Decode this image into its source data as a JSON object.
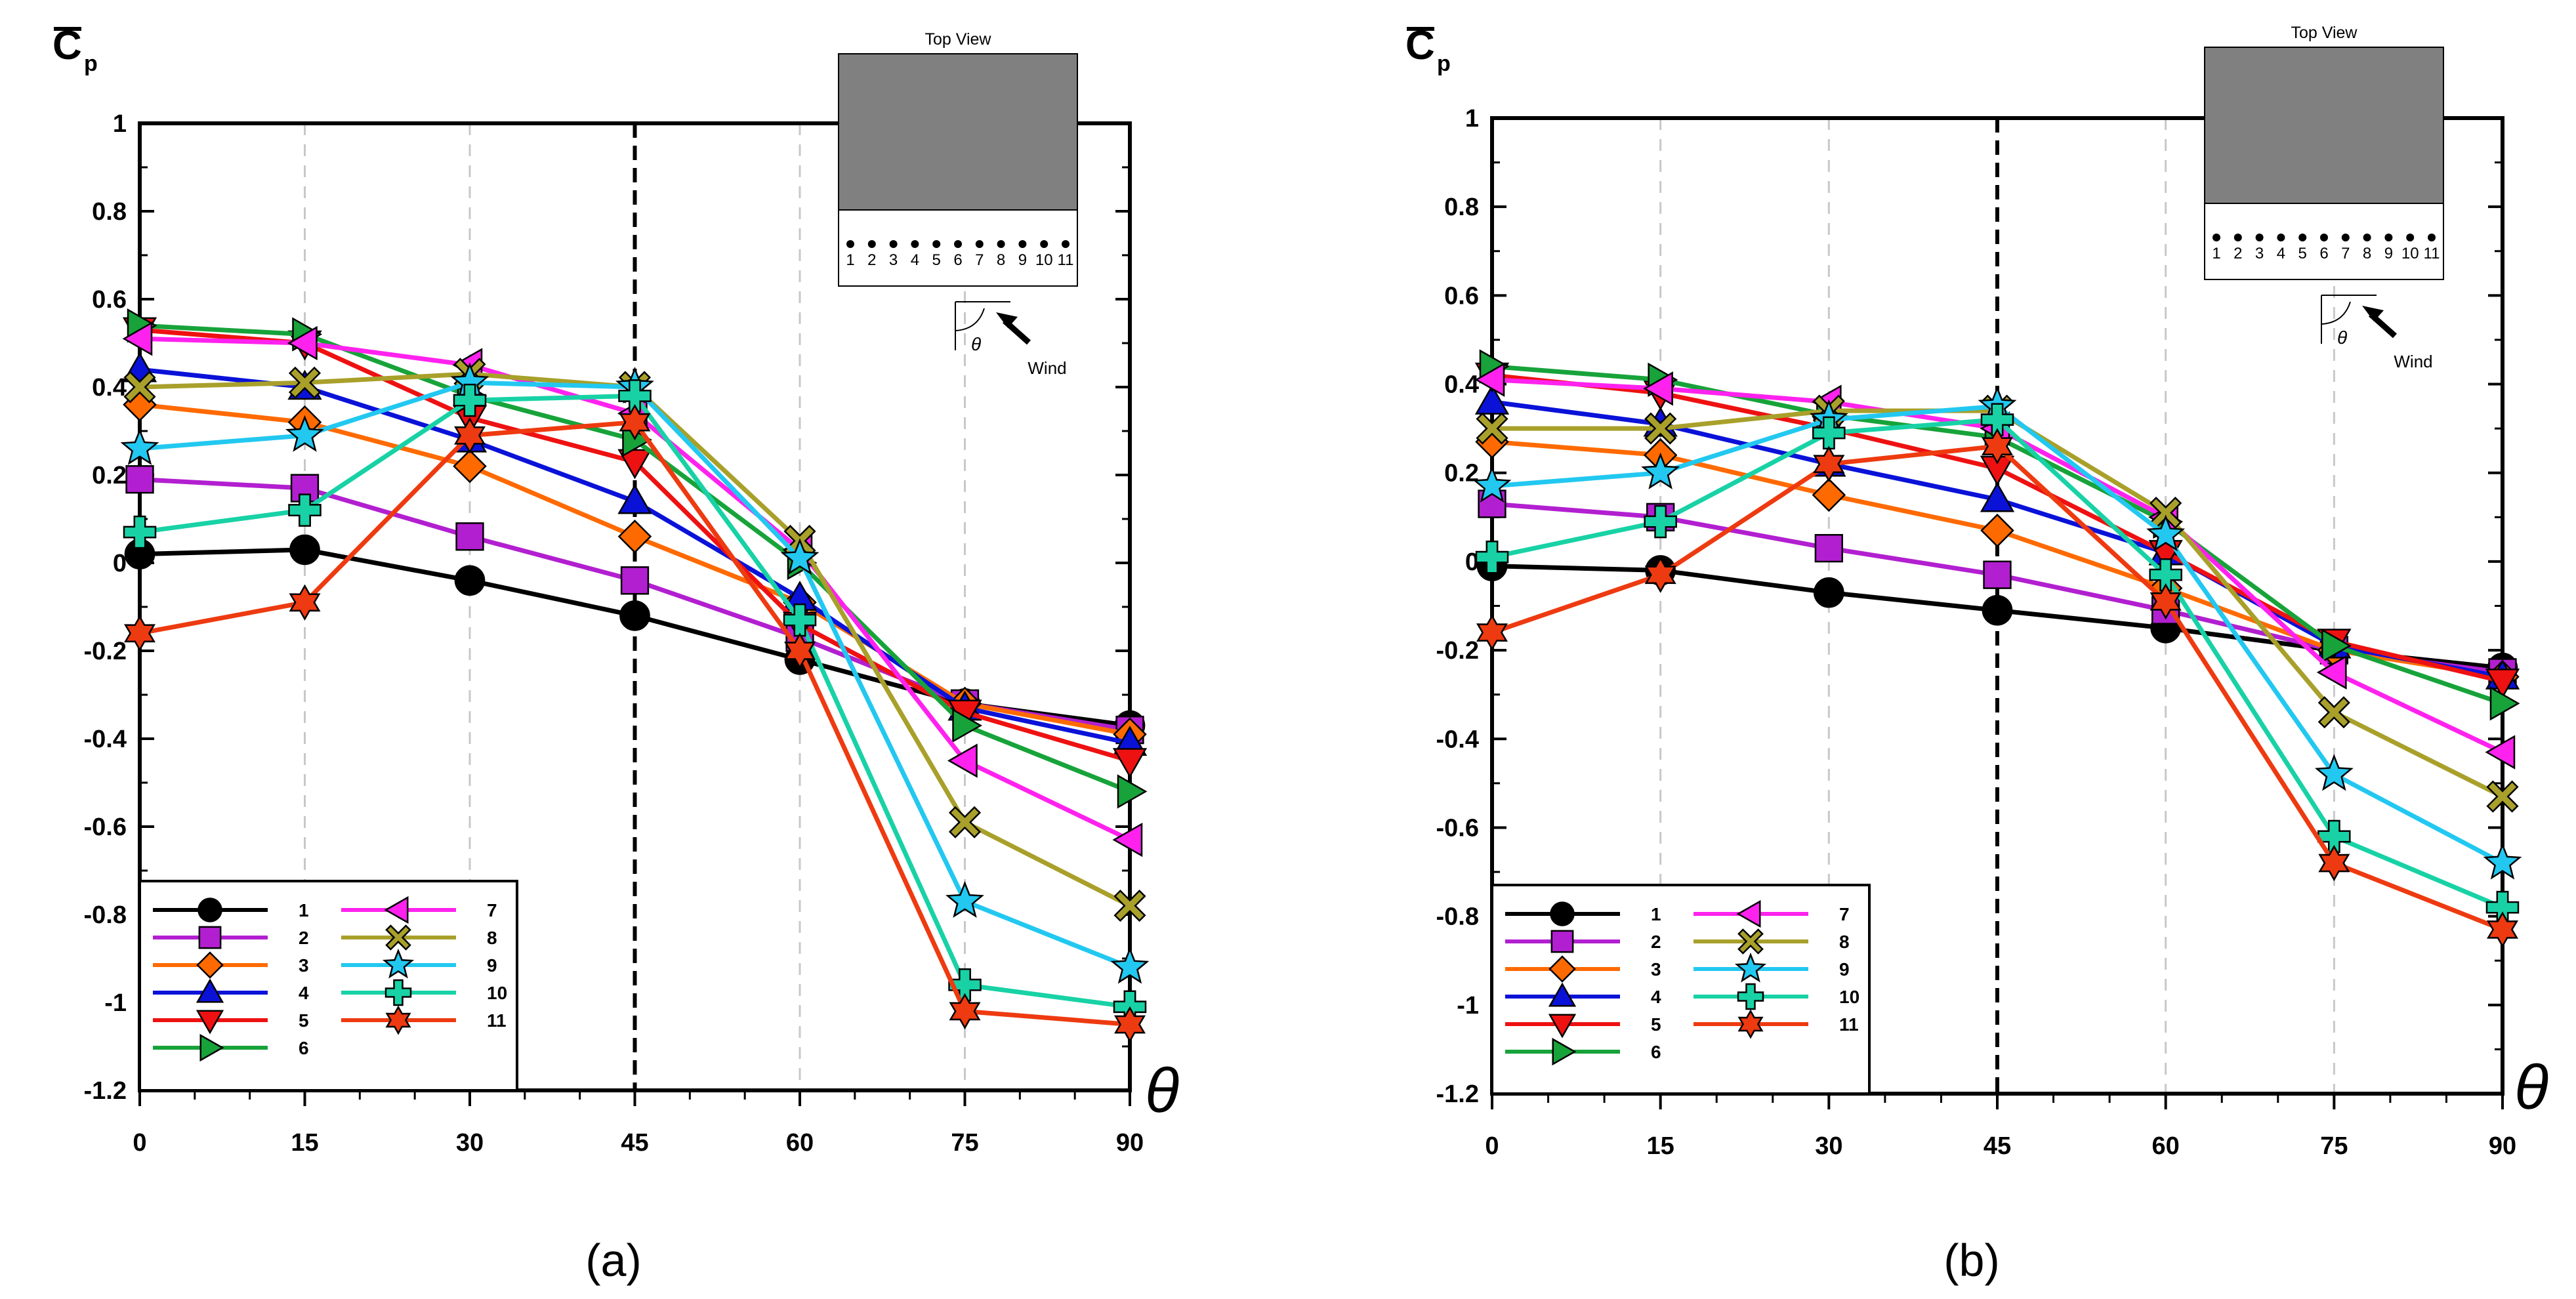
{
  "panels": [
    {
      "letter": "(a)",
      "ylabel": "C",
      "ylabel_sub": "p",
      "xlabel": "θ",
      "inset": {
        "title": "Top View",
        "taps": [
          "1",
          "2",
          "3",
          "4",
          "5",
          "6",
          "7",
          "8",
          "9",
          "10",
          "11"
        ],
        "angle_label": "θ",
        "wind_label": "Wind"
      }
    },
    {
      "letter": "(b)",
      "ylabel": "C",
      "ylabel_sub": "p",
      "xlabel": "θ",
      "inset": {
        "title": "Top View",
        "taps": [
          "1",
          "2",
          "3",
          "4",
          "5",
          "6",
          "7",
          "8",
          "9",
          "10",
          "11"
        ],
        "angle_label": "θ",
        "wind_label": "Wind"
      }
    }
  ],
  "chart_data": [
    {
      "type": "line",
      "title": "(a)",
      "xlabel": "θ",
      "ylabel": "C̄p",
      "x": [
        0,
        15,
        30,
        45,
        60,
        75,
        90
      ],
      "xlim": [
        0,
        90
      ],
      "ylim": [
        -1.2,
        1
      ],
      "yticks": [
        -1.2,
        -1,
        -0.8,
        -0.6,
        -0.4,
        -0.2,
        0,
        0.2,
        0.4,
        0.6,
        0.8,
        1
      ],
      "ytick_labels": [
        "-1.2",
        "-1",
        "-0.8",
        "-0.6",
        "-0.4",
        "-0.2",
        "0",
        "0.2",
        "0.4",
        "0.6",
        "0.8",
        "1"
      ],
      "xticks": [
        "0",
        "15",
        "30",
        "45",
        "60",
        "75",
        "90"
      ],
      "reference_line_x": 45,
      "legend_placement": "bottom-left",
      "series": [
        {
          "name": "1",
          "color": "#000000",
          "marker": "circle",
          "values": [
            0.02,
            0.03,
            -0.04,
            -0.12,
            -0.22,
            -0.32,
            -0.37
          ]
        },
        {
          "name": "2",
          "color": "#b21fd0",
          "marker": "square",
          "values": [
            0.19,
            0.17,
            0.06,
            -0.04,
            -0.17,
            -0.32,
            -0.38
          ]
        },
        {
          "name": "3",
          "color": "#ff6a00",
          "marker": "diamond",
          "values": [
            0.36,
            0.32,
            0.22,
            0.06,
            -0.09,
            -0.32,
            -0.39
          ]
        },
        {
          "name": "4",
          "color": "#0a12d8",
          "marker": "triangle-up",
          "values": [
            0.44,
            0.4,
            0.28,
            0.14,
            -0.08,
            -0.33,
            -0.41
          ]
        },
        {
          "name": "5",
          "color": "#ee1111",
          "marker": "triangle-down",
          "values": [
            0.53,
            0.5,
            0.33,
            0.23,
            -0.14,
            -0.34,
            -0.45
          ]
        },
        {
          "name": "6",
          "color": "#17a33a",
          "marker": "triangle-right",
          "values": [
            0.54,
            0.52,
            0.38,
            0.28,
            0.0,
            -0.37,
            -0.52
          ]
        },
        {
          "name": "7",
          "color": "#ff22ee",
          "marker": "triangle-left",
          "values": [
            0.51,
            0.5,
            0.45,
            0.34,
            0.03,
            -0.45,
            -0.63
          ]
        },
        {
          "name": "8",
          "color": "#a8a02a",
          "marker": "x",
          "values": [
            0.4,
            0.41,
            0.43,
            0.4,
            0.05,
            -0.59,
            -0.78
          ]
        },
        {
          "name": "9",
          "color": "#22c8f0",
          "marker": "star",
          "values": [
            0.26,
            0.29,
            0.41,
            0.4,
            0.01,
            -0.77,
            -0.92
          ]
        },
        {
          "name": "10",
          "color": "#18d2a6",
          "marker": "plus",
          "values": [
            0.07,
            0.12,
            0.37,
            0.38,
            -0.13,
            -0.96,
            -1.01
          ]
        },
        {
          "name": "11",
          "color": "#ee3a10",
          "marker": "hexagram",
          "values": [
            -0.16,
            -0.09,
            0.29,
            0.32,
            -0.2,
            -1.02,
            -1.05
          ]
        }
      ]
    },
    {
      "type": "line",
      "title": "(b)",
      "xlabel": "θ",
      "ylabel": "C̄p",
      "x": [
        0,
        15,
        30,
        45,
        60,
        75,
        90
      ],
      "xlim": [
        0,
        90
      ],
      "ylim": [
        -1.2,
        1
      ],
      "yticks": [
        -1.2,
        -1,
        -0.8,
        -0.6,
        -0.4,
        -0.2,
        0,
        0.2,
        0.4,
        0.6,
        0.8,
        1
      ],
      "ytick_labels": [
        "-1.2",
        "-1",
        "-0.8",
        "-0.6",
        "-0.4",
        "-0.2",
        "0",
        "0.2",
        "0.4",
        "0.6",
        "0.8",
        "1"
      ],
      "xticks": [
        "0",
        "15",
        "30",
        "45",
        "60",
        "75",
        "90"
      ],
      "reference_line_x": 45,
      "legend_placement": "bottom-left",
      "series": [
        {
          "name": "1",
          "color": "#000000",
          "marker": "circle",
          "values": [
            -0.01,
            -0.02,
            -0.07,
            -0.11,
            -0.15,
            -0.2,
            -0.24
          ]
        },
        {
          "name": "2",
          "color": "#b21fd0",
          "marker": "square",
          "values": [
            0.13,
            0.1,
            0.03,
            -0.03,
            -0.11,
            -0.2,
            -0.25
          ]
        },
        {
          "name": "3",
          "color": "#ff6a00",
          "marker": "diamond",
          "values": [
            0.27,
            0.24,
            0.15,
            0.07,
            -0.06,
            -0.2,
            -0.26
          ]
        },
        {
          "name": "4",
          "color": "#0a12d8",
          "marker": "triangle-up",
          "values": [
            0.36,
            0.31,
            0.22,
            0.14,
            0.02,
            -0.19,
            -0.26
          ]
        },
        {
          "name": "5",
          "color": "#ee1111",
          "marker": "triangle-down",
          "values": [
            0.42,
            0.38,
            0.3,
            0.21,
            0.02,
            -0.18,
            -0.27
          ]
        },
        {
          "name": "6",
          "color": "#17a33a",
          "marker": "triangle-right",
          "values": [
            0.44,
            0.41,
            0.33,
            0.28,
            0.09,
            -0.19,
            -0.32
          ]
        },
        {
          "name": "7",
          "color": "#ff22ee",
          "marker": "triangle-left",
          "values": [
            0.41,
            0.39,
            0.36,
            0.3,
            0.1,
            -0.25,
            -0.43
          ]
        },
        {
          "name": "8",
          "color": "#a8a02a",
          "marker": "x",
          "values": [
            0.3,
            0.3,
            0.34,
            0.34,
            0.11,
            -0.34,
            -0.53
          ]
        },
        {
          "name": "9",
          "color": "#22c8f0",
          "marker": "star",
          "values": [
            0.17,
            0.2,
            0.32,
            0.35,
            0.06,
            -0.48,
            -0.68
          ]
        },
        {
          "name": "10",
          "color": "#18d2a6",
          "marker": "plus",
          "values": [
            0.01,
            0.09,
            0.29,
            0.32,
            -0.03,
            -0.62,
            -0.78
          ]
        },
        {
          "name": "11",
          "color": "#ee3a10",
          "marker": "hexagram",
          "values": [
            -0.16,
            -0.03,
            0.22,
            0.26,
            -0.09,
            -0.68,
            -0.83
          ]
        }
      ]
    }
  ]
}
